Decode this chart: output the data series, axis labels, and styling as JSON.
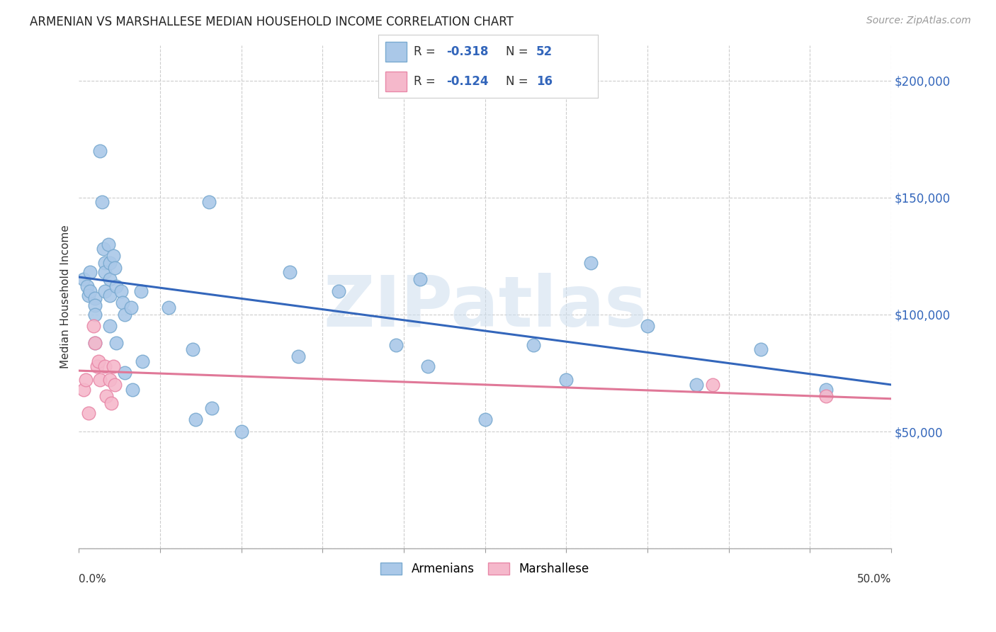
{
  "title": "ARMENIAN VS MARSHALLESE MEDIAN HOUSEHOLD INCOME CORRELATION CHART",
  "source": "Source: ZipAtlas.com",
  "ylabel": "Median Household Income",
  "yticks": [
    0,
    50000,
    100000,
    150000,
    200000
  ],
  "ytick_labels": [
    "",
    "$50,000",
    "$100,000",
    "$150,000",
    "$200,000"
  ],
  "xlim": [
    0.0,
    0.5
  ],
  "ylim": [
    0,
    215000
  ],
  "watermark": "ZIPatlas",
  "bottom_legend_armenians": "Armenians",
  "bottom_legend_marshallese": "Marshallese",
  "armenians_color": "#aac8e8",
  "armenians_edge": "#7aaad0",
  "marshallese_color": "#f5b8cb",
  "marshallese_edge": "#e888a8",
  "line_blue": "#3366bb",
  "line_pink": "#e07898",
  "background": "#ffffff",
  "grid_color": "#cccccc",
  "armenians_x": [
    0.003,
    0.005,
    0.006,
    0.007,
    0.007,
    0.01,
    0.01,
    0.01,
    0.01,
    0.013,
    0.014,
    0.015,
    0.016,
    0.016,
    0.016,
    0.018,
    0.019,
    0.019,
    0.019,
    0.019,
    0.021,
    0.022,
    0.023,
    0.023,
    0.026,
    0.027,
    0.028,
    0.028,
    0.032,
    0.033,
    0.038,
    0.039,
    0.055,
    0.07,
    0.072,
    0.08,
    0.082,
    0.1,
    0.13,
    0.135,
    0.16,
    0.195,
    0.21,
    0.215,
    0.25,
    0.28,
    0.3,
    0.315,
    0.35,
    0.38,
    0.42,
    0.46
  ],
  "armenians_y": [
    115000,
    112000,
    108000,
    118000,
    110000,
    107000,
    104000,
    100000,
    88000,
    170000,
    148000,
    128000,
    122000,
    118000,
    110000,
    130000,
    122000,
    115000,
    108000,
    95000,
    125000,
    120000,
    112000,
    88000,
    110000,
    105000,
    100000,
    75000,
    103000,
    68000,
    110000,
    80000,
    103000,
    85000,
    55000,
    148000,
    60000,
    50000,
    118000,
    82000,
    110000,
    87000,
    115000,
    78000,
    55000,
    87000,
    72000,
    122000,
    95000,
    70000,
    85000,
    68000
  ],
  "marshallese_x": [
    0.003,
    0.004,
    0.006,
    0.009,
    0.01,
    0.011,
    0.012,
    0.013,
    0.016,
    0.017,
    0.019,
    0.02,
    0.021,
    0.022,
    0.39,
    0.46
  ],
  "marshallese_y": [
    68000,
    72000,
    58000,
    95000,
    88000,
    78000,
    80000,
    72000,
    78000,
    65000,
    72000,
    62000,
    78000,
    70000,
    70000,
    65000
  ],
  "blue_line_x": [
    0.0,
    0.5
  ],
  "blue_line_y": [
    116000,
    70000
  ],
  "pink_line_x": [
    0.0,
    0.5
  ],
  "pink_line_y": [
    76000,
    64000
  ]
}
